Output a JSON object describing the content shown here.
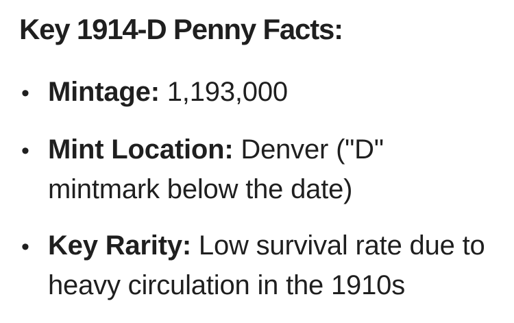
{
  "page": {
    "background_color": "#ffffff",
    "text_color": "#1f1f1f"
  },
  "heading": {
    "text": "Key 1914-D Penny Facts:"
  },
  "facts_list": {
    "bullet_glyph": "•",
    "items": [
      {
        "label": "Mintage:",
        "value": "1,193,000"
      },
      {
        "label": "Mint Location:",
        "value": "Denver (\"D\"\nmintmark below the date)"
      },
      {
        "label": "Key Rarity:",
        "value": "Low survival rate due to\nheavy circulation in the 1910s"
      }
    ]
  }
}
